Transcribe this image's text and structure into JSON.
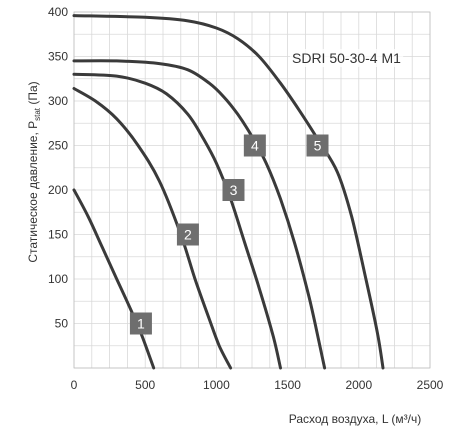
{
  "chart_data": {
    "type": "line",
    "model_label": "SDRI 50-30-4 M1",
    "ylabel_main": "Статическое давление, P",
    "ylabel_sub": "stat",
    "ylabel_unit": " (Па)",
    "xlabel": "Расход воздуха, L (м³/ч)",
    "xlim": [
      0,
      2500
    ],
    "ylim": [
      0,
      400
    ],
    "x_ticks": [
      0,
      500,
      1000,
      1500,
      2000,
      2500
    ],
    "y_ticks": [
      50,
      100,
      150,
      200,
      250,
      300,
      350,
      400
    ],
    "x_tick_labels": [
      "0",
      "500",
      "1000",
      "1500",
      "2000",
      "2500"
    ],
    "y_tick_labels": [
      "50",
      "100",
      "150",
      "200",
      "250",
      "300",
      "350",
      "400"
    ],
    "grid": true,
    "series": [
      {
        "name": "1",
        "label_at": [
          470,
          50
        ],
        "points": [
          [
            0,
            200
          ],
          [
            100,
            170
          ],
          [
            200,
            135
          ],
          [
            300,
            100
          ],
          [
            400,
            65
          ],
          [
            480,
            35
          ],
          [
            560,
            0
          ]
        ]
      },
      {
        "name": "2",
        "label_at": [
          800,
          150
        ],
        "points": [
          [
            0,
            314
          ],
          [
            150,
            300
          ],
          [
            300,
            280
          ],
          [
            450,
            250
          ],
          [
            600,
            210
          ],
          [
            750,
            150
          ],
          [
            850,
            100
          ],
          [
            950,
            55
          ],
          [
            1020,
            25
          ],
          [
            1100,
            0
          ]
        ]
      },
      {
        "name": "3",
        "label_at": [
          1120,
          200
        ],
        "points": [
          [
            0,
            330
          ],
          [
            300,
            328
          ],
          [
            500,
            320
          ],
          [
            650,
            308
          ],
          [
            800,
            285
          ],
          [
            900,
            260
          ],
          [
            1000,
            230
          ],
          [
            1100,
            190
          ],
          [
            1200,
            140
          ],
          [
            1300,
            90
          ],
          [
            1400,
            35
          ],
          [
            1450,
            0
          ]
        ]
      },
      {
        "name": "4",
        "label_at": [
          1270,
          250
        ],
        "points": [
          [
            0,
            345
          ],
          [
            300,
            345
          ],
          [
            600,
            342
          ],
          [
            800,
            335
          ],
          [
            950,
            320
          ],
          [
            1050,
            305
          ],
          [
            1150,
            285
          ],
          [
            1250,
            260
          ],
          [
            1350,
            230
          ],
          [
            1450,
            190
          ],
          [
            1550,
            140
          ],
          [
            1650,
            80
          ],
          [
            1720,
            30
          ],
          [
            1760,
            0
          ]
        ]
      },
      {
        "name": "5",
        "label_at": [
          1710,
          250
        ],
        "points": [
          [
            0,
            396
          ],
          [
            500,
            394
          ],
          [
            800,
            390
          ],
          [
            1000,
            382
          ],
          [
            1150,
            370
          ],
          [
            1300,
            350
          ],
          [
            1450,
            320
          ],
          [
            1580,
            290
          ],
          [
            1720,
            255
          ],
          [
            1850,
            220
          ],
          [
            1950,
            170
          ],
          [
            2050,
            100
          ],
          [
            2130,
            40
          ],
          [
            2170,
            0
          ]
        ]
      }
    ]
  }
}
